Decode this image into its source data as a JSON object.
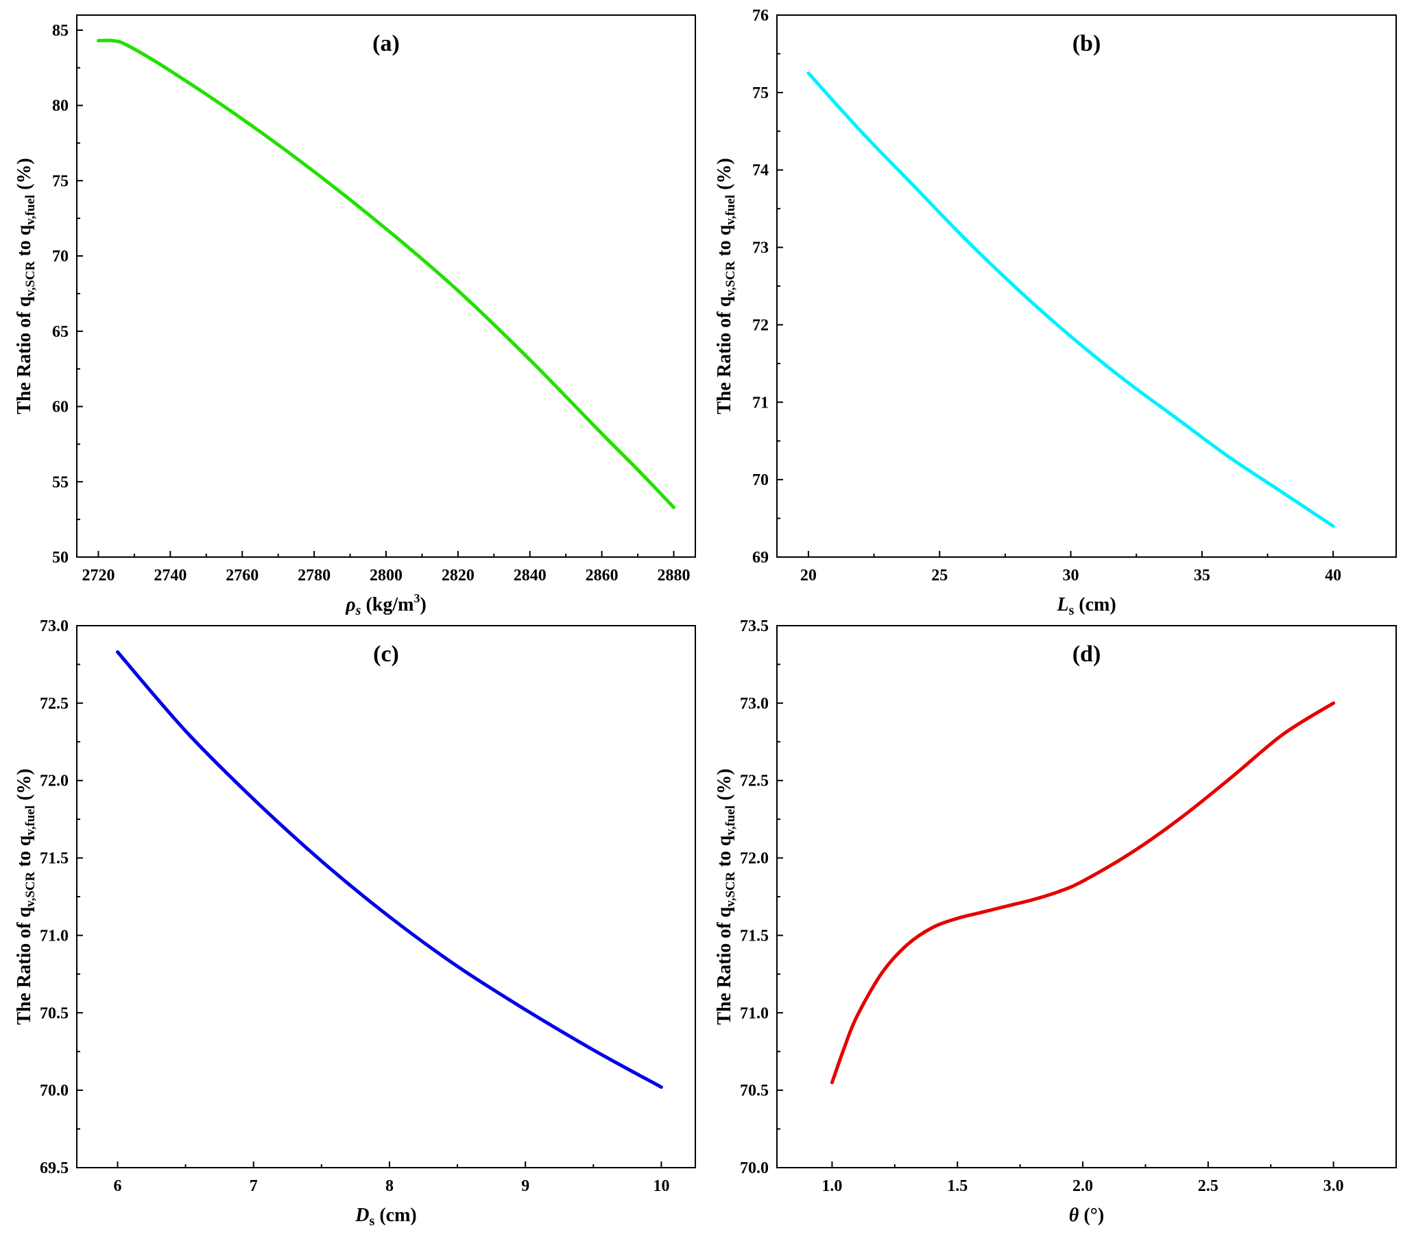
{
  "chart_data": [
    {
      "type": "line",
      "panel": "(a)",
      "color": "#22e000",
      "xlabel": {
        "symbol": "ρ",
        "sub": "s",
        "unit_pre": " (kg/m",
        "unit_sup": "3",
        "unit_post": ")"
      },
      "ylabel": {
        "pre": "The Ratio of q",
        "sub1": "v,SCR",
        "mid": " to q",
        "sub2": "v,fuel",
        "post": " (%)"
      },
      "xlim": [
        2714,
        2886
      ],
      "ylim": [
        50,
        86
      ],
      "xticks": [
        2720,
        2740,
        2760,
        2780,
        2800,
        2820,
        2840,
        2860,
        2880
      ],
      "xtick_labels": [
        "2720",
        "2740",
        "2760",
        "2780",
        "2800",
        "2820",
        "2840",
        "2860",
        "2880"
      ],
      "yticks": [
        50,
        55,
        60,
        65,
        70,
        75,
        80,
        85
      ],
      "ytick_labels": [
        "50",
        "55",
        "60",
        "65",
        "70",
        "75",
        "80",
        "85"
      ],
      "series": [
        {
          "name": "ratio",
          "x": [
            2720,
            2724,
            2728,
            2740,
            2760,
            2780,
            2800,
            2820,
            2840,
            2860,
            2870,
            2880
          ],
          "y": [
            84.3,
            84.3,
            84.0,
            82.3,
            79.1,
            75.6,
            71.8,
            67.7,
            63.1,
            58.2,
            55.8,
            53.3
          ]
        }
      ]
    },
    {
      "type": "line",
      "panel": "(b)",
      "color": "#00f0ff",
      "xlabel": {
        "symbol": "L",
        "sub": "s",
        "unit_pre": " (cm)",
        "unit_sup": "",
        "unit_post": ""
      },
      "ylabel": {
        "pre": "The Ratio of q",
        "sub1": "v,SCR",
        "mid": " to q",
        "sub2": "v,fuel",
        "post": " (%)"
      },
      "xlim": [
        18.8,
        42.4
      ],
      "ylim": [
        69,
        76
      ],
      "xticks": [
        20,
        25,
        30,
        35,
        40
      ],
      "xtick_labels": [
        "20",
        "25",
        "30",
        "35",
        "40"
      ],
      "yticks": [
        69,
        70,
        71,
        72,
        73,
        74,
        75,
        76
      ],
      "ytick_labels": [
        "69",
        "70",
        "71",
        "72",
        "73",
        "74",
        "75",
        "76"
      ],
      "series": [
        {
          "name": "ratio",
          "x": [
            20,
            22,
            24,
            26,
            28,
            30,
            32,
            34,
            36,
            38,
            40
          ],
          "y": [
            75.25,
            74.5,
            73.8,
            73.1,
            72.45,
            71.85,
            71.3,
            70.8,
            70.3,
            69.85,
            69.4
          ]
        }
      ]
    },
    {
      "type": "line",
      "panel": "(c)",
      "color": "#0000e6",
      "xlabel": {
        "symbol": "D",
        "sub": "s",
        "unit_pre": " (cm)",
        "unit_sup": "",
        "unit_post": ""
      },
      "ylabel": {
        "pre": "The Ratio of q",
        "sub1": "v,SCR",
        "mid": " to q",
        "sub2": "v,fuel",
        "post": " (%)"
      },
      "xlim": [
        5.7,
        10.25
      ],
      "ylim": [
        69.5,
        73
      ],
      "xticks": [
        6,
        7,
        8,
        9,
        10
      ],
      "xtick_labels": [
        "6",
        "7",
        "8",
        "9",
        "10"
      ],
      "yticks": [
        69.5,
        70.0,
        70.5,
        71.0,
        71.5,
        72.0,
        72.5,
        73.0
      ],
      "ytick_labels": [
        "69.5",
        "70.0",
        "70.5",
        "71.0",
        "71.5",
        "72.0",
        "72.5",
        "73.0"
      ],
      "series": [
        {
          "name": "ratio",
          "x": [
            6,
            6.5,
            7,
            7.5,
            8,
            8.5,
            9,
            9.5,
            10
          ],
          "y": [
            72.83,
            72.32,
            71.88,
            71.48,
            71.12,
            70.8,
            70.52,
            70.26,
            70.02
          ]
        }
      ]
    },
    {
      "type": "line",
      "panel": "(d)",
      "color": "#e60000",
      "xlabel": {
        "symbol": "θ",
        "sub": "",
        "unit_pre": "  (°)",
        "unit_sup": "",
        "unit_post": ""
      },
      "ylabel": {
        "pre": "The Ratio of q",
        "sub1": "v,SCR",
        "mid": " to q",
        "sub2": "v,fuel",
        "post": " (%)"
      },
      "xlim": [
        0.78,
        3.25
      ],
      "ylim": [
        70,
        73.5
      ],
      "xticks": [
        1.0,
        1.5,
        2.0,
        2.5,
        3.0
      ],
      "xtick_labels": [
        "1.0",
        "1.5",
        "2.0",
        "2.5",
        "3.0"
      ],
      "yticks": [
        70.0,
        70.5,
        71.0,
        71.5,
        72.0,
        72.5,
        73.0,
        73.5
      ],
      "ytick_labels": [
        "70.0",
        "70.5",
        "71.0",
        "71.5",
        "72.0",
        "72.5",
        "73.0",
        "73.5"
      ],
      "series": [
        {
          "name": "ratio",
          "x": [
            1.0,
            1.05,
            1.1,
            1.2,
            1.3,
            1.4,
            1.5,
            1.6,
            1.7,
            1.8,
            1.9,
            2.0,
            2.2,
            2.4,
            2.6,
            2.8,
            3.0
          ],
          "y": [
            70.55,
            70.78,
            70.98,
            71.26,
            71.44,
            71.55,
            71.61,
            71.65,
            71.69,
            71.73,
            71.78,
            71.85,
            72.04,
            72.27,
            72.53,
            72.8,
            73.0
          ]
        }
      ]
    }
  ]
}
